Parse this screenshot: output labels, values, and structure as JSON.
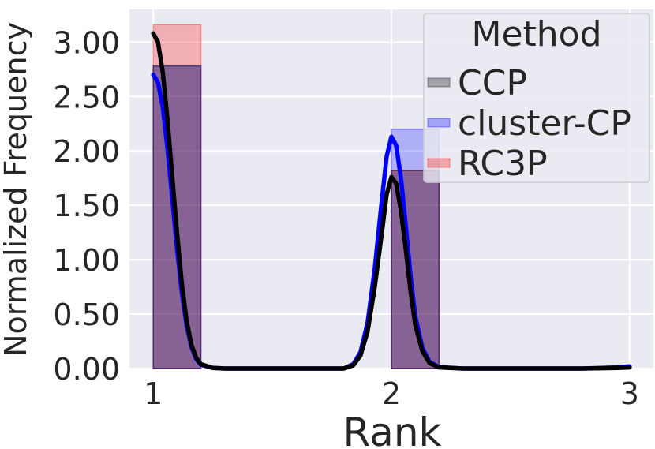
{
  "chart_data": {
    "type": "bar",
    "xlabel": "Rank",
    "ylabel": "Normalized Frequency",
    "xlim": [
      0.9,
      3.1
    ],
    "ylim": [
      0,
      3.3
    ],
    "xticks": [
      1,
      2,
      3
    ],
    "yticks": [
      0.0,
      0.5,
      1.0,
      1.5,
      2.0,
      2.5,
      3.0
    ],
    "ytick_labels": [
      "0.00",
      "0.50",
      "1.00",
      "1.50",
      "2.00",
      "2.50",
      "3.00"
    ],
    "grid": true,
    "legend": {
      "title": "Method",
      "placement": "top-right"
    },
    "colors": {
      "background": "#eaeaf2",
      "grid": "#ffffff",
      "text": "#262626",
      "legend_bg": "#eaeaf2",
      "legend_border": "#cccccc"
    },
    "bin_width": 0.2,
    "series": [
      {
        "name": "CCP",
        "color": "#000000",
        "bars": [
          {
            "x": 1.0,
            "height": 2.78
          },
          {
            "x": 2.0,
            "height": 1.82
          }
        ],
        "kde": [
          [
            1.0,
            3.08
          ],
          [
            1.02,
            3.0
          ],
          [
            1.04,
            2.72
          ],
          [
            1.06,
            2.28
          ],
          [
            1.08,
            1.76
          ],
          [
            1.1,
            1.24
          ],
          [
            1.12,
            0.78
          ],
          [
            1.14,
            0.44
          ],
          [
            1.16,
            0.22
          ],
          [
            1.18,
            0.1
          ],
          [
            1.2,
            0.04
          ],
          [
            1.25,
            0.005
          ],
          [
            1.3,
            0.0
          ],
          [
            1.8,
            0.0
          ],
          [
            1.84,
            0.03
          ],
          [
            1.87,
            0.12
          ],
          [
            1.9,
            0.34
          ],
          [
            1.93,
            0.75
          ],
          [
            1.96,
            1.25
          ],
          [
            1.98,
            1.6
          ],
          [
            2.0,
            1.76
          ],
          [
            2.02,
            1.7
          ],
          [
            2.04,
            1.45
          ],
          [
            2.06,
            1.1
          ],
          [
            2.08,
            0.72
          ],
          [
            2.1,
            0.4
          ],
          [
            2.13,
            0.16
          ],
          [
            2.16,
            0.05
          ],
          [
            2.2,
            0.01
          ],
          [
            2.3,
            0.0
          ],
          [
            2.8,
            0.0
          ],
          [
            2.95,
            0.005
          ],
          [
            3.0,
            0.01
          ]
        ]
      },
      {
        "name": "cluster-CP",
        "color": "#0000ff",
        "bars": [
          {
            "x": 1.0,
            "height": 2.78
          },
          {
            "x": 2.0,
            "height": 2.2
          }
        ],
        "kde": [
          [
            1.0,
            2.7
          ],
          [
            1.02,
            2.63
          ],
          [
            1.04,
            2.4
          ],
          [
            1.06,
            2.02
          ],
          [
            1.08,
            1.56
          ],
          [
            1.1,
            1.1
          ],
          [
            1.12,
            0.7
          ],
          [
            1.14,
            0.4
          ],
          [
            1.16,
            0.2
          ],
          [
            1.18,
            0.09
          ],
          [
            1.2,
            0.035
          ],
          [
            1.25,
            0.005
          ],
          [
            1.3,
            0.0
          ],
          [
            1.8,
            0.0
          ],
          [
            1.84,
            0.04
          ],
          [
            1.87,
            0.15
          ],
          [
            1.9,
            0.42
          ],
          [
            1.93,
            0.92
          ],
          [
            1.96,
            1.55
          ],
          [
            1.98,
            1.95
          ],
          [
            2.0,
            2.13
          ],
          [
            2.02,
            2.05
          ],
          [
            2.04,
            1.75
          ],
          [
            2.06,
            1.32
          ],
          [
            2.08,
            0.86
          ],
          [
            2.1,
            0.48
          ],
          [
            2.13,
            0.19
          ],
          [
            2.16,
            0.06
          ],
          [
            2.2,
            0.012
          ],
          [
            2.3,
            0.0
          ],
          [
            2.8,
            0.0
          ],
          [
            2.95,
            0.01
          ],
          [
            3.0,
            0.02
          ]
        ]
      },
      {
        "name": "RC3P",
        "color": "#ff0000",
        "bars": [
          {
            "x": 1.0,
            "height": 3.16
          },
          {
            "x": 2.0,
            "height": 1.82
          }
        ],
        "kde": []
      }
    ]
  }
}
